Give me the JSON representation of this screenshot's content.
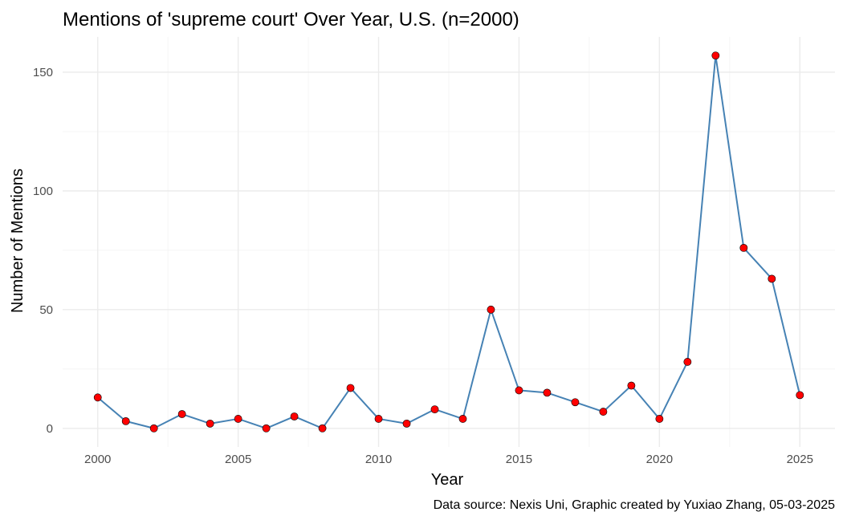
{
  "chart_data": {
    "type": "line",
    "title": "Mentions of 'supreme court' Over Year, U.S. (n=2000)",
    "xlabel": "Year",
    "ylabel": "Number of Mentions",
    "caption": "Data source: Nexis Uni, Graphic created by Yuxiao Zhang, 05-03-2025",
    "x": [
      2000,
      2001,
      2002,
      2003,
      2004,
      2005,
      2006,
      2007,
      2008,
      2009,
      2010,
      2011,
      2012,
      2013,
      2014,
      2015,
      2016,
      2017,
      2018,
      2019,
      2020,
      2021,
      2022,
      2023,
      2024,
      2025
    ],
    "y": [
      13,
      3,
      0,
      6,
      2,
      4,
      0,
      5,
      0,
      17,
      4,
      2,
      8,
      4,
      50,
      16,
      15,
      11,
      7,
      18,
      4,
      28,
      157,
      76,
      63,
      14
    ],
    "xlim": [
      1998.75,
      2026.25
    ],
    "ylim": [
      -7.85,
      164.85
    ],
    "x_ticks": [
      2000,
      2005,
      2010,
      2015,
      2020,
      2025
    ],
    "y_ticks": [
      0,
      50,
      100,
      150
    ],
    "grid": true,
    "legend": "none",
    "colors": {
      "line": "#4682b4",
      "points": "#ff0000",
      "grid": "#ebebeb"
    }
  }
}
